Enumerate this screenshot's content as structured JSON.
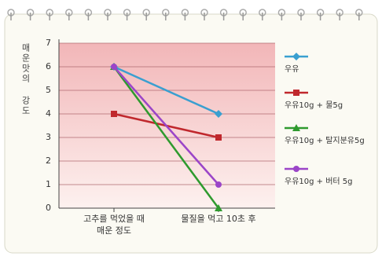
{
  "chart_data": {
    "type": "line",
    "y_label": "매운맛의 강도",
    "categories": [
      "고추를 먹었을 때\n매운 정도",
      "물질을 먹고 10초 후"
    ],
    "series": [
      {
        "name": "우유",
        "color": "#3a9fd0",
        "values": [
          6,
          4
        ]
      },
      {
        "name": "우유10g + 물5g",
        "color": "#c0282d",
        "values": [
          4,
          3
        ]
      },
      {
        "name": "우유10g + 탈지분유5g",
        "color": "#2e9a2e",
        "values": [
          6,
          0
        ]
      },
      {
        "name": "우유10g + 버터 5g",
        "color": "#9b45c8",
        "values": [
          6,
          1
        ]
      }
    ],
    "ylim": [
      0,
      7
    ],
    "yticks": [
      0,
      1,
      2,
      3,
      4,
      5,
      6,
      7
    ],
    "grid": true
  }
}
